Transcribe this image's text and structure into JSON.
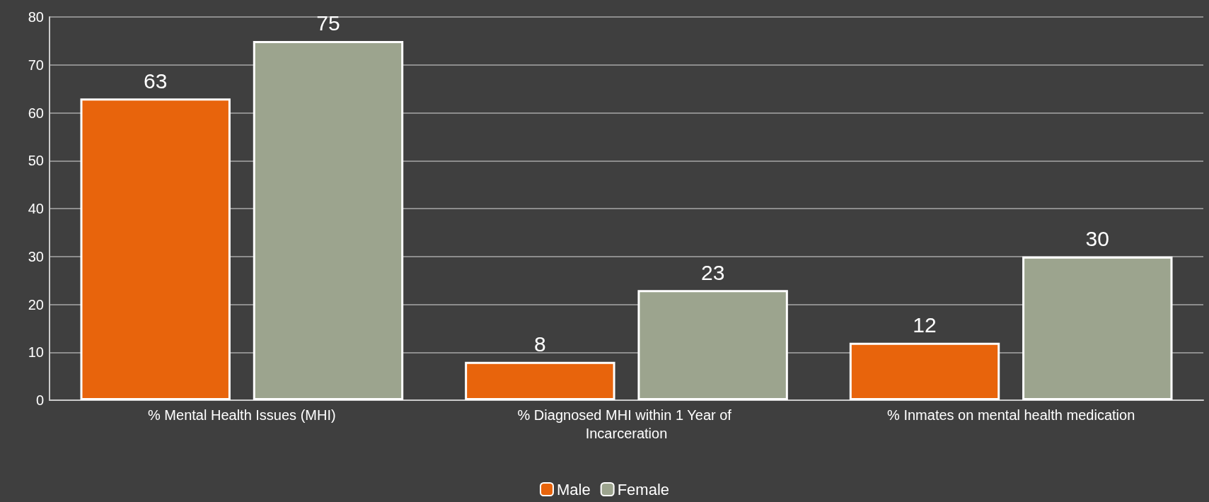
{
  "chart_data": {
    "type": "bar",
    "categories": [
      "% Mental Health Issues (MHI)",
      "% Diagnosed MHI within 1 Year of Incarceration",
      "% Inmates on mental health medication"
    ],
    "series": [
      {
        "name": "Male",
        "color": "#e8640c",
        "values": [
          63,
          8,
          12
        ]
      },
      {
        "name": "Female",
        "color": "#9ca48e",
        "values": [
          75,
          23,
          30
        ]
      }
    ],
    "ylim": [
      0,
      80
    ],
    "yticks": [
      0,
      10,
      20,
      30,
      40,
      50,
      60,
      70,
      80
    ],
    "grid": "y",
    "legend": "bottom",
    "data_labels": true
  }
}
